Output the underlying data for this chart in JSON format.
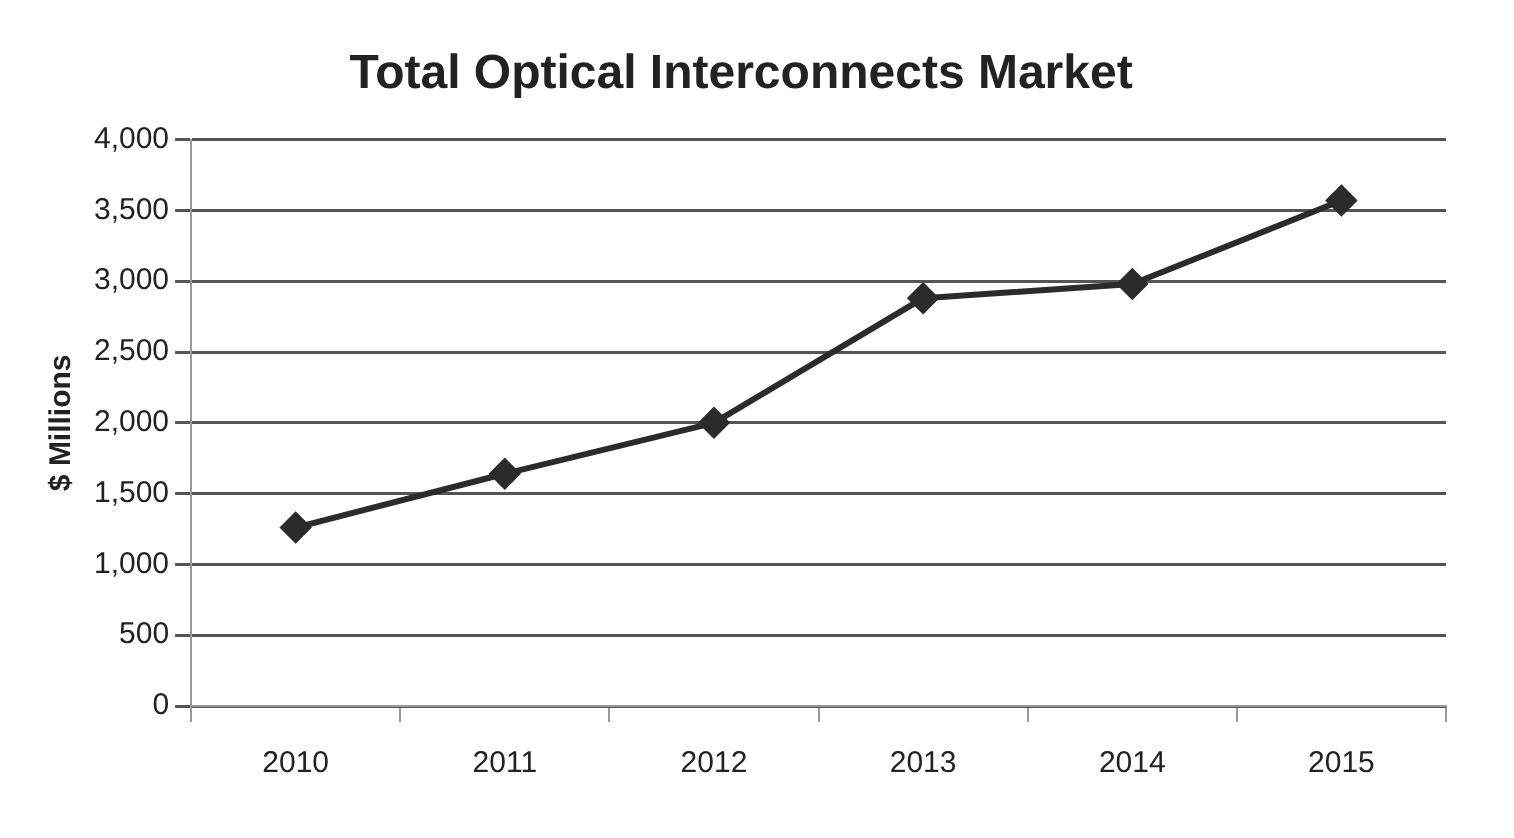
{
  "chart_data": {
    "type": "line",
    "title": "Total Optical Interconnects Market",
    "ylabel": "$ Millions",
    "categories": [
      "2010",
      "2011",
      "2012",
      "2013",
      "2014",
      "2015"
    ],
    "series": [
      {
        "color": "#2b2b2b",
        "values": [
          1260,
          1640,
          2000,
          2880,
          2980,
          3570
        ]
      }
    ],
    "ylim": [
      0,
      4000
    ],
    "yticks": [
      {
        "value": 0,
        "label": "0"
      },
      {
        "value": 500,
        "label": "500"
      },
      {
        "value": 1000,
        "label": "1,000"
      },
      {
        "value": 1500,
        "label": "1,500"
      },
      {
        "value": 2000,
        "label": "2,000"
      },
      {
        "value": 2500,
        "label": "2,500"
      },
      {
        "value": 3000,
        "label": "3,000"
      },
      {
        "value": 3500,
        "label": "3,500"
      },
      {
        "value": 4000,
        "label": "4,000"
      }
    ],
    "grid": "y",
    "marker": "diamond",
    "line_style": "solid",
    "legend": false
  }
}
